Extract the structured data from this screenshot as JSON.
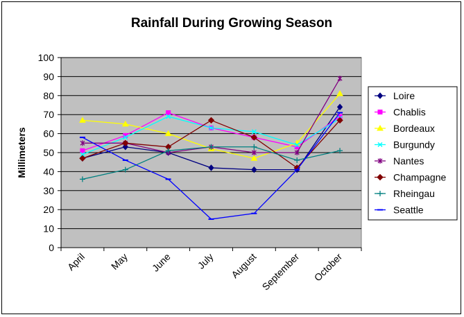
{
  "chart_data": {
    "type": "line",
    "title": "Rainfall During Growing Season",
    "xlabel": "",
    "ylabel": "Millimeters",
    "ylim": [
      0,
      100
    ],
    "ytick_step": 10,
    "grid": true,
    "legend_position": "right",
    "plot_background": "#c0c0c0",
    "categories": [
      "April",
      "May",
      "June",
      "July",
      "August",
      "September",
      "October"
    ],
    "series": [
      {
        "name": "Loire",
        "color": "#000080",
        "marker": "diamond",
        "values": [
          47,
          53,
          50,
          42,
          41,
          41,
          74
        ]
      },
      {
        "name": "Chablis",
        "color": "#ff00ff",
        "marker": "square",
        "values": [
          51,
          59,
          71,
          63,
          58,
          53,
          69
        ]
      },
      {
        "name": "Bordeaux",
        "color": "#ffff00",
        "marker": "triangle",
        "values": [
          67,
          65,
          60,
          52,
          47,
          55,
          81
        ]
      },
      {
        "name": "Burgundy",
        "color": "#00ffff",
        "marker": "x",
        "values": [
          49,
          58,
          69,
          63,
          61,
          54,
          68
        ]
      },
      {
        "name": "Nantes",
        "color": "#800080",
        "marker": "star",
        "values": [
          55,
          55,
          50,
          53,
          50,
          50,
          89
        ]
      },
      {
        "name": "Champagne",
        "color": "#800000",
        "marker": "circle",
        "values": [
          47,
          55,
          53,
          67,
          58,
          42,
          67
        ]
      },
      {
        "name": "Rheingau",
        "color": "#008080",
        "marker": "plus",
        "values": [
          36,
          41,
          51,
          53,
          53,
          46,
          51
        ]
      },
      {
        "name": "Seattle",
        "color": "#0000ff",
        "marker": "dash",
        "values": [
          58,
          46,
          36,
          15,
          18,
          41,
          71
        ]
      }
    ]
  }
}
